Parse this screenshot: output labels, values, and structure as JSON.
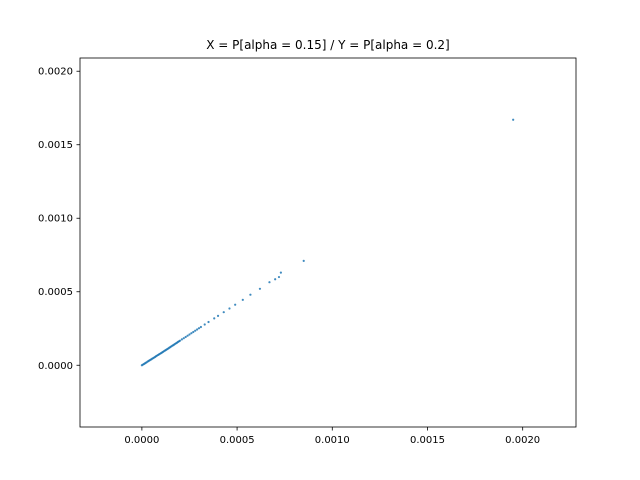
{
  "chart_data": {
    "type": "scatter",
    "title": "X = P[alpha = 0.15] / Y = P[alpha = 0.2]",
    "xlabel": "",
    "ylabel": "",
    "xlim": [
      -0.000325,
      0.00228
    ],
    "ylim": [
      -0.00042,
      0.00209
    ],
    "grid": false,
    "x_ticks": [
      {
        "value": 0.0,
        "label": "0.0000"
      },
      {
        "value": 0.0005,
        "label": "0.0005"
      },
      {
        "value": 0.001,
        "label": "0.0010"
      },
      {
        "value": 0.0015,
        "label": "0.0015"
      },
      {
        "value": 0.002,
        "label": "0.0020"
      }
    ],
    "y_ticks": [
      {
        "value": 0.0,
        "label": "0.0000"
      },
      {
        "value": 0.0005,
        "label": "0.0005"
      },
      {
        "value": 0.001,
        "label": "0.0010"
      },
      {
        "value": 0.0015,
        "label": "0.0015"
      },
      {
        "value": 0.002,
        "label": "0.0020"
      }
    ],
    "series": [
      {
        "color": "#1f77b4",
        "x": [
          0.0,
          5e-06,
          1e-05,
          1.5e-05,
          2e-05,
          2.5e-05,
          3e-05,
          3.5e-05,
          4e-05,
          4.5e-05,
          5e-05,
          5.5e-05,
          6e-05,
          6.5e-05,
          7e-05,
          7.5e-05,
          8e-05,
          8.5e-05,
          9e-05,
          9.5e-05,
          0.0001,
          0.000105,
          0.00011,
          0.000115,
          0.00012,
          0.000125,
          0.00013,
          0.000135,
          0.00014,
          0.000145,
          0.00015,
          0.000155,
          0.00016,
          0.000165,
          0.00017,
          0.000175,
          0.00018,
          0.000185,
          0.00019,
          0.000195,
          0.0002,
          0.00021,
          0.00022,
          0.00023,
          0.00024,
          0.00025,
          0.00026,
          0.00027,
          0.00028,
          0.00029,
          0.0003,
          0.00031,
          0.00033,
          0.00035,
          0.00038,
          0.0004,
          0.00043,
          0.00046,
          0.00049,
          0.00053,
          0.00057,
          0.00062,
          0.00067,
          0.0007,
          0.00072,
          0.00073,
          0.00085,
          0.00195
        ],
        "y": [
          0.0,
          4e-06,
          8e-06,
          1.2e-05,
          1.6e-05,
          2e-05,
          2.5e-05,
          2.9e-05,
          3.3e-05,
          3.7e-05,
          4.1e-05,
          4.5e-05,
          4.9e-05,
          5.3e-05,
          5.7e-05,
          6.2e-05,
          6.6e-05,
          7e-05,
          7.4e-05,
          7.8e-05,
          8.2e-05,
          8.6e-05,
          9e-05,
          9.5e-05,
          9.9e-05,
          0.000103,
          0.000107,
          0.000111,
          0.000116,
          0.00012,
          0.000124,
          0.000129,
          0.000133,
          0.000137,
          0.000141,
          0.000146,
          0.00015,
          0.000154,
          0.000159,
          0.000163,
          0.000167,
          0.000176,
          0.000184,
          0.000192,
          0.000201,
          0.000209,
          0.000218,
          0.000226,
          0.000235,
          0.000243,
          0.000252,
          0.00026,
          0.000277,
          0.000294,
          0.000319,
          0.000336,
          0.000361,
          0.000386,
          0.000412,
          0.000445,
          0.00048,
          0.00052,
          0.000565,
          0.000585,
          0.0006,
          0.00063,
          0.00071,
          0.00167
        ]
      }
    ]
  }
}
